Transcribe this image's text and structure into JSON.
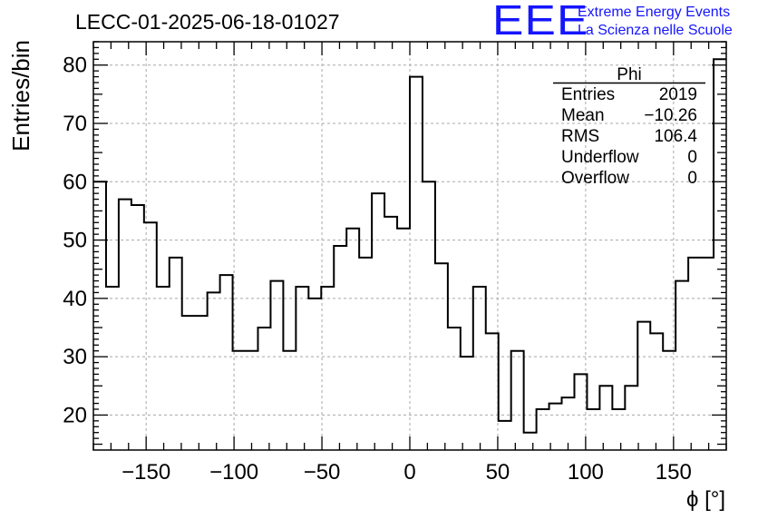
{
  "chart_data": {
    "type": "histogram",
    "title": "LECC-01-2025-06-18-01027",
    "xlabel": "ϕ [°]",
    "ylabel": "Entries/bin",
    "xlim": [
      -180,
      180
    ],
    "ylim": [
      14,
      84
    ],
    "xticks": [
      -150,
      -100,
      -50,
      0,
      50,
      100,
      150
    ],
    "xtick_labels": [
      "−150",
      "−100",
      "−50",
      "0",
      "50",
      "100",
      "150"
    ],
    "yticks": [
      20,
      30,
      40,
      50,
      60,
      70,
      80
    ],
    "ytick_labels": [
      "20",
      "30",
      "40",
      "50",
      "60",
      "70",
      "80"
    ],
    "grid": true,
    "bin_width": 7.2,
    "bin_edges_start": -180,
    "values": [
      60,
      42,
      57,
      56,
      53,
      42,
      47,
      37,
      37,
      41,
      44,
      31,
      31,
      35,
      43,
      31,
      42,
      40,
      42,
      49,
      52,
      47,
      58,
      54,
      52,
      78,
      60,
      46,
      35,
      30,
      42,
      34,
      19,
      31,
      17,
      21,
      22,
      23,
      27,
      21,
      25,
      21,
      25,
      36,
      34,
      31,
      43,
      47,
      47,
      81
    ],
    "stats_box": {
      "title": "Phi",
      "rows": [
        {
          "label": "Entries",
          "value": "2019"
        },
        {
          "label": "Mean",
          "value": "−10.26"
        },
        {
          "label": "RMS",
          "value": "106.4"
        },
        {
          "label": "Underflow",
          "value": "0"
        },
        {
          "label": "Overflow",
          "value": "0"
        }
      ]
    }
  },
  "branding": {
    "logo_text": "EEE",
    "line1": "Extreme Energy Events",
    "line2": "La Scienza nelle Scuole",
    "color": "#1515ff"
  }
}
